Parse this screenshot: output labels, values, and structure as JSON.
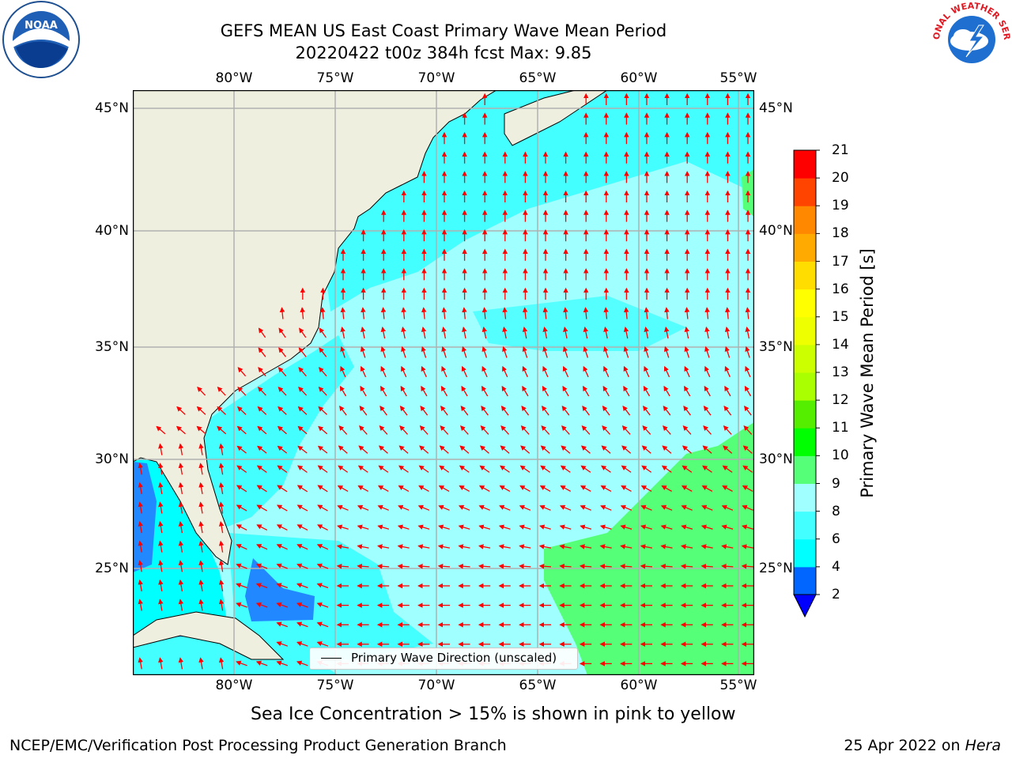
{
  "header": {
    "title_line1": "GEFS MEAN US East Coast Primary Wave Mean Period",
    "title_line2": "20220422 t00z 384h fcst   Max: 9.85"
  },
  "logos": {
    "left": {
      "icon": "noaa-logo-icon",
      "text": "NOAA"
    },
    "right": {
      "icon": "nws-logo-icon",
      "text": "NATIONAL WEATHER SERVICE"
    }
  },
  "map": {
    "lon_labels": [
      "80°W",
      "75°W",
      "70°W",
      "65°W",
      "60°W",
      "55°W"
    ],
    "lat_labels": [
      "45°N",
      "40°N",
      "35°N",
      "30°N",
      "25°N"
    ],
    "extent": {
      "lon_min": -85,
      "lon_max": -54.2,
      "lat_min": 20.5,
      "lat_max": 45.8
    },
    "land_color": "#efefdf",
    "arrow_color": "#ff0000",
    "grid_color": "#b0b0b0",
    "legend_label": "Primary Wave Direction (unscaled)"
  },
  "colorbar": {
    "label": "Primary Wave Mean Period [s]",
    "ticks": [
      "2",
      "4",
      "6",
      "8",
      "9",
      "10",
      "11",
      "12",
      "13",
      "14",
      "15",
      "16",
      "17",
      "18",
      "19",
      "20",
      "21"
    ],
    "colors": [
      "#0066ff",
      "#00ffff",
      "#44ffff",
      "#a0ffff",
      "#55ff77",
      "#00ff00",
      "#55ee00",
      "#aaff00",
      "#ccff00",
      "#eeff00",
      "#ffff00",
      "#ffdd00",
      "#ffaa00",
      "#ff8800",
      "#ff4400",
      "#ff0000"
    ],
    "under_color": "#0000ff"
  },
  "caption": "Sea Ice Concentration > 15% is shown in pink to yellow",
  "footer": {
    "left": "NCEP/EMC/Verification Post Processing Product Generation Branch",
    "right_date": "25 Apr 2022 on ",
    "right_host": "Hera"
  }
}
